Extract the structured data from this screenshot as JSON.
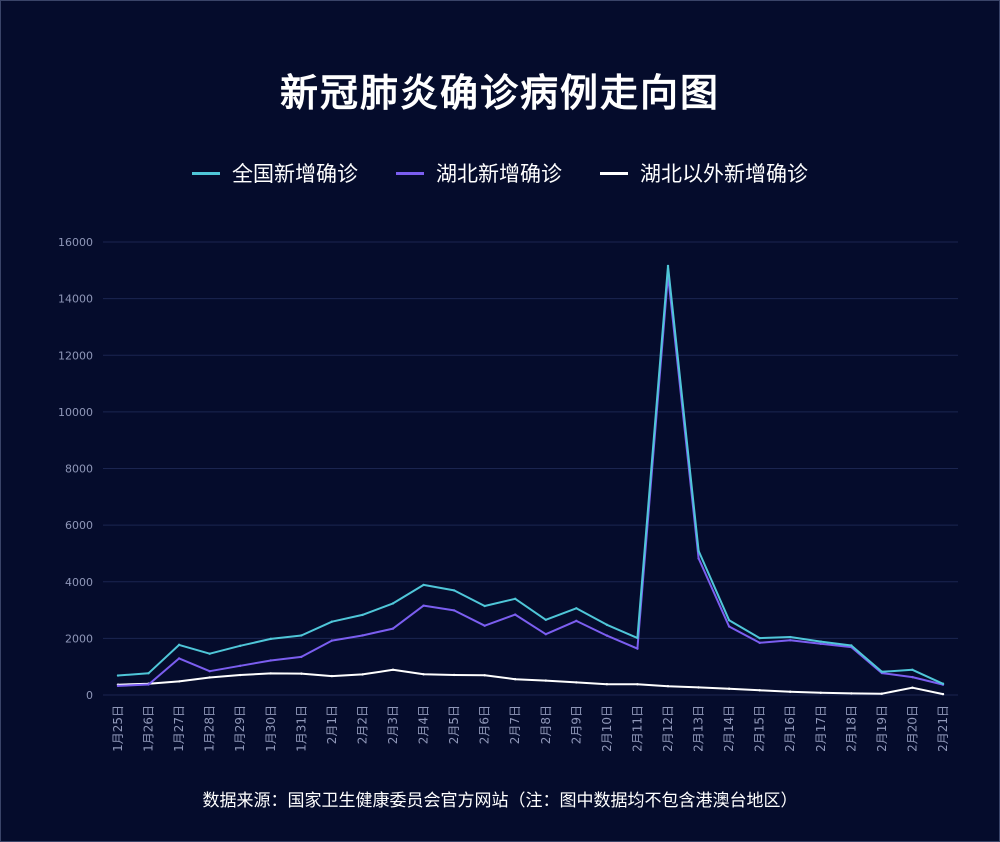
{
  "colors": {
    "background": "#050c2c",
    "grid": "#1b2550",
    "tick_text": "#8f97b8",
    "national": "#4fc6d8",
    "hubei": "#7b5ef0",
    "outside": "#ffffff"
  },
  "chart_data": {
    "type": "line",
    "title": "新冠肺炎确诊病例走向图",
    "source": "数据来源：国家卫生健康委员会官方网站（注：图中数据均不包含港澳台地区）",
    "ylim": [
      0,
      16000
    ],
    "yticks": [
      0,
      2000,
      4000,
      6000,
      8000,
      10000,
      12000,
      14000,
      16000
    ],
    "grid": true,
    "legend_position": "top-center",
    "categories": [
      "1月25日",
      "1月26日",
      "1月27日",
      "1月28日",
      "1月29日",
      "1月30日",
      "1月31日",
      "2月1日",
      "2月2日",
      "2月3日",
      "2月4日",
      "2月5日",
      "2月6日",
      "2月7日",
      "2月8日",
      "2月9日",
      "2月10日",
      "2月11日",
      "2月12日",
      "2月13日",
      "2月14日",
      "2月15日",
      "2月16日",
      "2月17日",
      "2月18日",
      "2月19日",
      "2月20日",
      "2月21日"
    ],
    "series": [
      {
        "name": "全国新增确诊",
        "color": "#4fc6d8",
        "values": [
          688,
          769,
          1771,
          1459,
          1737,
          1982,
          2102,
          2590,
          2829,
          3235,
          3887,
          3694,
          3143,
          3399,
          2656,
          3062,
          2478,
          2015,
          15152,
          5090,
          2641,
          2009,
          2048,
          1886,
          1749,
          820,
          889,
          397
        ]
      },
      {
        "name": "湖北新增确诊",
        "color": "#7b5ef0",
        "values": [
          323,
          371,
          1291,
          840,
          1032,
          1220,
          1347,
          1921,
          2103,
          2345,
          3156,
          2987,
          2447,
          2841,
          2147,
          2618,
          2097,
          1638,
          14840,
          4823,
          2420,
          1843,
          1933,
          1807,
          1693,
          775,
          631,
          366
        ]
      },
      {
        "name": "湖北以外新增确诊",
        "color": "#ffffff",
        "values": [
          365,
          398,
          480,
          619,
          705,
          762,
          755,
          669,
          726,
          890,
          731,
          707,
          696,
          558,
          509,
          444,
          381,
          377,
          312,
          267,
          221,
          166,
          115,
          79,
          56,
          45,
          258,
          31
        ]
      }
    ]
  }
}
